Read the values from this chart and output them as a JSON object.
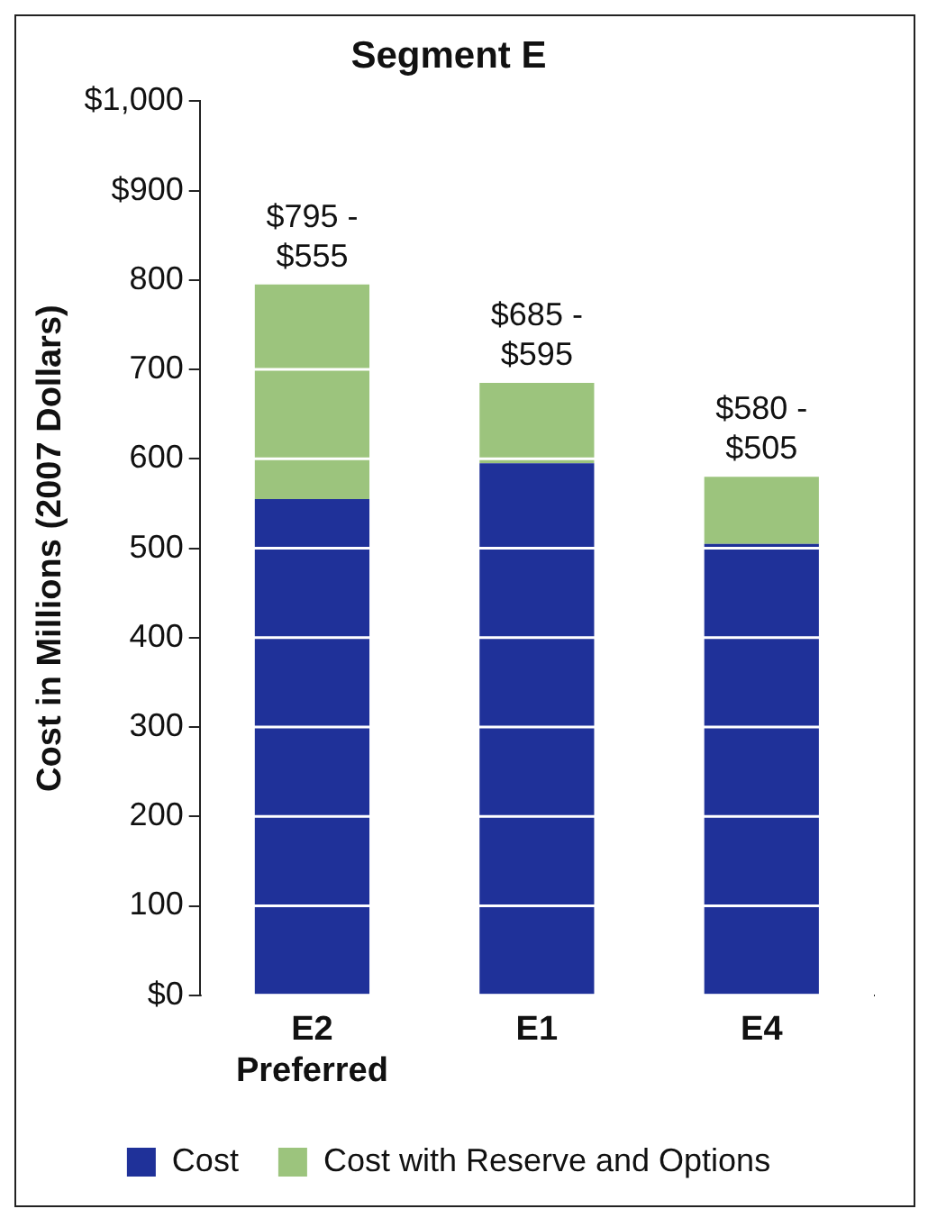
{
  "chart_data": {
    "type": "bar",
    "title": "Segment E",
    "ylabel": "Cost in Millions (2007 Dollars)",
    "categories": [
      "E2\nPreferred",
      "E1",
      "E4"
    ],
    "series": [
      {
        "name": "Cost",
        "color": "#1f3199",
        "values": [
          555,
          595,
          505
        ]
      },
      {
        "name": "Cost with Reserve and Options",
        "color": "#9cc47d",
        "values": [
          240,
          90,
          75
        ]
      }
    ],
    "stacked": true,
    "totals": [
      "$795 -\n$555",
      "$685 -\n$595",
      "$580 -\n$505"
    ],
    "ylim": [
      0,
      1000
    ],
    "yticks": [
      {
        "value": 0,
        "label": "$0"
      },
      100,
      200,
      300,
      400,
      500,
      600,
      700,
      800,
      {
        "value": 900,
        "label": "$900"
      },
      {
        "value": 1000,
        "label": "$1,000"
      }
    ],
    "grid": "y",
    "legend": "bottom"
  }
}
